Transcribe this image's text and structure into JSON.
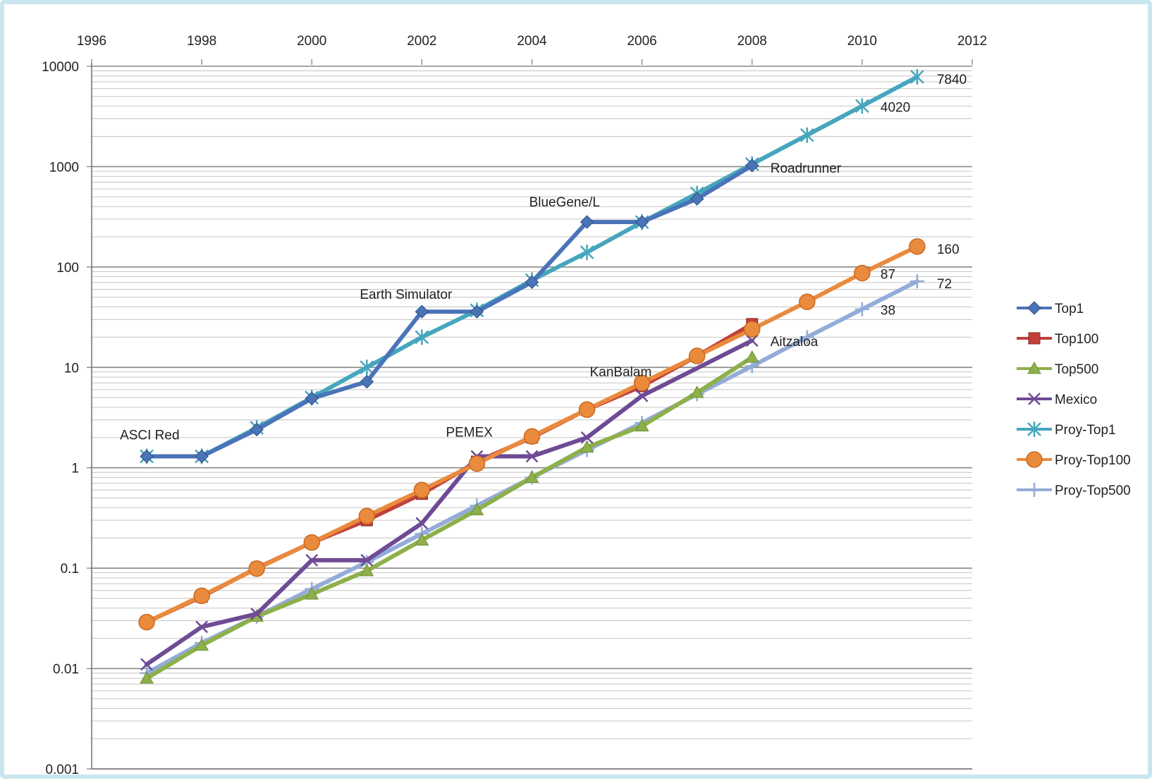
{
  "chart_data": {
    "type": "line",
    "x_axis": {
      "min": 1996,
      "max": 2012,
      "ticks": [
        1996,
        1998,
        2000,
        2002,
        2004,
        2006,
        2008,
        2010,
        2012
      ],
      "position": "top"
    },
    "y_axis": {
      "scale": "log",
      "min": 0.001,
      "max": 10000,
      "ticks": [
        "10000",
        "1000",
        "100",
        "10",
        "1",
        "0.1",
        "0.01",
        "0.001"
      ]
    },
    "grid": true,
    "legend_position": "right",
    "series": [
      {
        "name": "Top1",
        "color": "#4a74b8",
        "marker": "diamond",
        "points": [
          [
            1997,
            1.3
          ],
          [
            1998,
            1.3
          ],
          [
            1999,
            2.4
          ],
          [
            2000,
            4.9
          ],
          [
            2001,
            7.2
          ],
          [
            2002,
            35.9
          ],
          [
            2003,
            35.9
          ],
          [
            2004,
            70.7
          ],
          [
            2005,
            280.6
          ],
          [
            2006,
            280.6
          ],
          [
            2007,
            478
          ],
          [
            2008,
            1026
          ]
        ]
      },
      {
        "name": "Top100",
        "color": "#c0403a",
        "marker": "square",
        "points": [
          [
            1997,
            0.029
          ],
          [
            1998,
            0.052
          ],
          [
            1999,
            0.1
          ],
          [
            2000,
            0.18
          ],
          [
            2001,
            0.3
          ],
          [
            2002,
            0.55
          ],
          [
            2003,
            1.15
          ],
          [
            2004,
            2.0
          ],
          [
            2005,
            3.8
          ],
          [
            2006,
            6.5
          ],
          [
            2007,
            13
          ],
          [
            2008,
            27
          ]
        ]
      },
      {
        "name": "Top500",
        "color": "#8db04a",
        "marker": "triangle",
        "points": [
          [
            1997,
            0.008
          ],
          [
            1998,
            0.017
          ],
          [
            1999,
            0.033
          ],
          [
            2000,
            0.055
          ],
          [
            2001,
            0.094
          ],
          [
            2002,
            0.19
          ],
          [
            2003,
            0.38
          ],
          [
            2004,
            0.8
          ],
          [
            2005,
            1.6
          ],
          [
            2006,
            2.6
          ],
          [
            2007,
            5.6
          ],
          [
            2008,
            12.6
          ]
        ]
      },
      {
        "name": "Mexico",
        "color": "#6e4b94",
        "marker": "x",
        "points": [
          [
            1997,
            0.011
          ],
          [
            1998,
            0.026
          ],
          [
            1999,
            0.035
          ],
          [
            2000,
            0.12
          ],
          [
            2001,
            0.12
          ],
          [
            2002,
            0.28
          ],
          [
            2003,
            1.3
          ],
          [
            2004,
            1.3
          ],
          [
            2005,
            2.0
          ],
          [
            2006,
            5.2
          ],
          [
            2008,
            18.5
          ]
        ]
      },
      {
        "name": "Proy-Top1",
        "color": "#46a6bd",
        "marker": "asterisk",
        "points": [
          [
            1997,
            1.3
          ],
          [
            1998,
            1.3
          ],
          [
            1999,
            2.5
          ],
          [
            2000,
            5
          ],
          [
            2001,
            10
          ],
          [
            2002,
            20
          ],
          [
            2003,
            37
          ],
          [
            2004,
            74
          ],
          [
            2005,
            140
          ],
          [
            2006,
            280
          ],
          [
            2007,
            540
          ],
          [
            2008,
            1060
          ],
          [
            2009,
            2060
          ],
          [
            2010,
            4020
          ],
          [
            2011,
            7840
          ]
        ]
      },
      {
        "name": "Proy-Top100",
        "color": "#ea8a3c",
        "marker": "circle",
        "points": [
          [
            1997,
            0.029
          ],
          [
            1998,
            0.053
          ],
          [
            1999,
            0.099
          ],
          [
            2000,
            0.18
          ],
          [
            2001,
            0.33
          ],
          [
            2002,
            0.6
          ],
          [
            2003,
            1.1
          ],
          [
            2004,
            2.05
          ],
          [
            2005,
            3.8
          ],
          [
            2006,
            7
          ],
          [
            2007,
            13
          ],
          [
            2008,
            24
          ],
          [
            2009,
            45
          ],
          [
            2010,
            87
          ],
          [
            2011,
            160
          ]
        ]
      },
      {
        "name": "Proy-Top500",
        "color": "#94acd8",
        "marker": "plus",
        "points": [
          [
            1997,
            0.009
          ],
          [
            1998,
            0.018
          ],
          [
            1999,
            0.033
          ],
          [
            2000,
            0.062
          ],
          [
            2001,
            0.115
          ],
          [
            2002,
            0.22
          ],
          [
            2003,
            0.42
          ],
          [
            2004,
            0.8
          ],
          [
            2005,
            1.5
          ],
          [
            2006,
            2.8
          ],
          [
            2007,
            5.4
          ],
          [
            2008,
            10.3
          ],
          [
            2009,
            20
          ],
          [
            2010,
            38
          ],
          [
            2011,
            72
          ]
        ]
      }
    ],
    "annotations": [
      {
        "text": "ASCI Red",
        "x": 1997,
        "y": 1.3
      },
      {
        "text": "Earth Simulator",
        "x": 2002,
        "y": 35.9
      },
      {
        "text": "BlueGene/L",
        "x": 2005,
        "y": 280.6
      },
      {
        "text": "Roadrunner",
        "x": 2008,
        "y": 1026
      },
      {
        "text": "PEMEX",
        "x": 2003,
        "y": 1.3
      },
      {
        "text": "KanBalam",
        "x": 2006,
        "y": 6.5
      },
      {
        "text": "Aitzaloa",
        "x": 2008,
        "y": 18.5
      }
    ],
    "data_labels": [
      {
        "text": "7840",
        "x": 2011,
        "y": 7840
      },
      {
        "text": "4020",
        "x": 2010,
        "y": 4020
      },
      {
        "text": "160",
        "x": 2011,
        "y": 160
      },
      {
        "text": "87",
        "x": 2010,
        "y": 87
      },
      {
        "text": "72",
        "x": 2011,
        "y": 72
      },
      {
        "text": "38",
        "x": 2010,
        "y": 38
      }
    ]
  }
}
